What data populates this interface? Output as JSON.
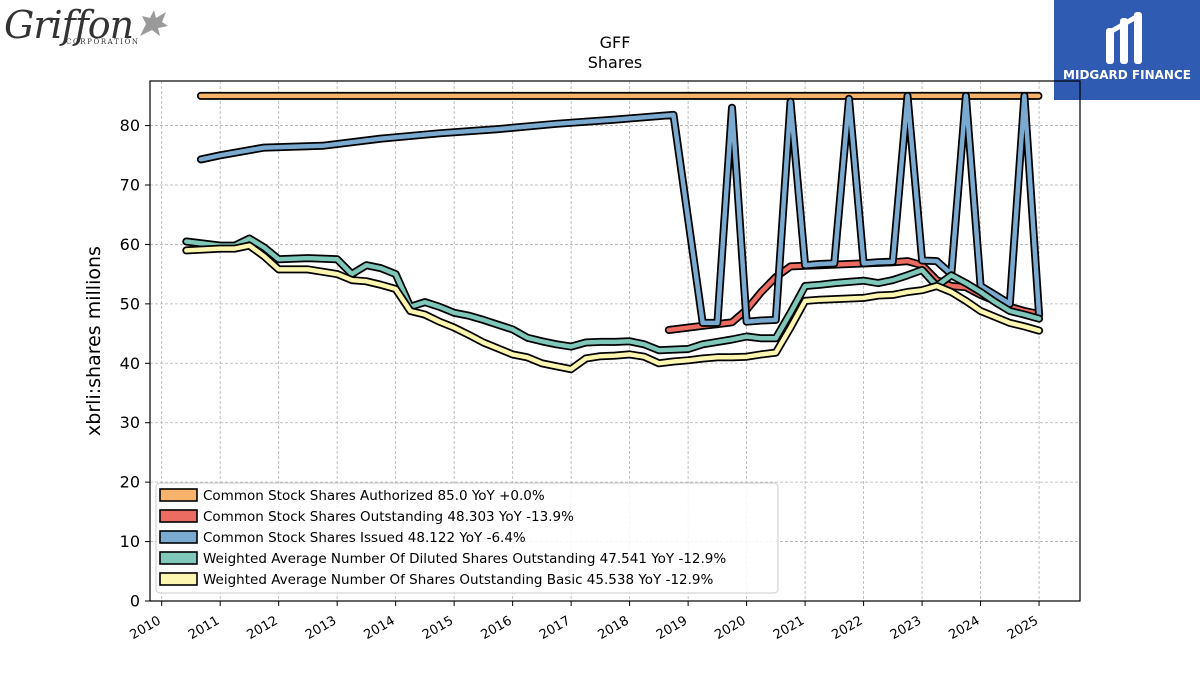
{
  "logos": {
    "left_text": "Griffon",
    "left_sub": "CORPORATION",
    "right_text": "MIDGARD FINANCE",
    "right_bg": "#2f5bb3"
  },
  "chart_data": {
    "type": "line",
    "title": "GFF",
    "subtitle": "Shares",
    "ylabel": "xbrli:shares millions",
    "xlabel": "",
    "xlim": [
      2009.8,
      2025.7
    ],
    "ylim": [
      0,
      87.5
    ],
    "yticks": [
      0,
      10,
      20,
      30,
      40,
      50,
      60,
      70,
      80
    ],
    "xticks": [
      "2010",
      "2011",
      "2012",
      "2013",
      "2014",
      "2015",
      "2016",
      "2017",
      "2018",
      "2019",
      "2020",
      "2021",
      "2022",
      "2023",
      "2024",
      "2025"
    ],
    "grid": true,
    "legend_position": "lower-left",
    "series": [
      {
        "name": "Common Stock Shares Authorized",
        "legend": "Common Stock Shares Authorized  85.0 YoY +0.0%",
        "color": "#f7b36b",
        "x": [
          2010.67,
          2024.99
        ],
        "y": [
          85.0,
          85.0
        ]
      },
      {
        "name": "Common Stock Shares Outstanding",
        "legend": "Common Stock Shares Outstanding  48.303 YoY -13.9%",
        "color": "#ed6c61",
        "x": [
          2018.67,
          2019.0,
          2019.25,
          2019.5,
          2019.75,
          2020.0,
          2020.25,
          2020.5,
          2020.75,
          2021.0,
          2021.25,
          2021.5,
          2021.75,
          2022.0,
          2022.25,
          2022.5,
          2022.75,
          2023.0,
          2023.25,
          2023.5,
          2023.75,
          2024.0,
          2024.25,
          2024.5,
          2024.75,
          2025.0
        ],
        "y": [
          45.6,
          46.0,
          46.3,
          46.6,
          46.9,
          49.0,
          52.0,
          54.5,
          56.3,
          56.4,
          56.5,
          56.6,
          56.7,
          56.8,
          56.9,
          57.0,
          57.2,
          56.5,
          54.0,
          53.0,
          52.8,
          51.5,
          50.5,
          49.5,
          48.8,
          48.3
        ]
      },
      {
        "name": "Common Stock Shares Issued",
        "legend": "Common Stock Shares Issued  48.122 YoY -6.4%",
        "color": "#7aaad0",
        "x": [
          2010.67,
          2011.0,
          2011.75,
          2012.75,
          2013.75,
          2014.75,
          2015.75,
          2016.75,
          2017.75,
          2018.75,
          2019.25,
          2019.5,
          2019.75,
          2020.0,
          2020.25,
          2020.5,
          2020.75,
          2021.0,
          2021.25,
          2021.5,
          2021.75,
          2022.0,
          2022.25,
          2022.5,
          2022.75,
          2023.0,
          2023.25,
          2023.5,
          2023.75,
          2024.0,
          2024.25,
          2024.5,
          2024.75,
          2025.0
        ],
        "y": [
          74.3,
          75.0,
          76.3,
          76.6,
          77.8,
          78.7,
          79.4,
          80.3,
          81.0,
          81.8,
          46.8,
          46.8,
          83.0,
          47.0,
          47.2,
          47.3,
          84.0,
          56.5,
          56.7,
          56.8,
          84.5,
          56.8,
          57.0,
          57.1,
          85.0,
          57.3,
          57.2,
          55.0,
          85.0,
          53.0,
          51.5,
          50.0,
          85.0,
          48.1
        ]
      },
      {
        "name": "Weighted Average Number Of Diluted Shares Outstanding",
        "legend": "Weighted Average Number Of Diluted Shares Outstanding  47.541 YoY -12.9%",
        "color": "#7fc8b9",
        "x": [
          2010.42,
          2011.0,
          2011.25,
          2011.5,
          2011.75,
          2012.0,
          2012.5,
          2013.0,
          2013.25,
          2013.5,
          2013.75,
          2014.0,
          2014.25,
          2014.5,
          2014.75,
          2015.0,
          2015.25,
          2015.5,
          2015.75,
          2016.0,
          2016.25,
          2016.5,
          2016.75,
          2017.0,
          2017.25,
          2017.5,
          2017.75,
          2018.0,
          2018.25,
          2018.5,
          2018.75,
          2019.0,
          2019.25,
          2019.5,
          2019.75,
          2020.0,
          2020.25,
          2020.5,
          2020.75,
          2021.0,
          2021.25,
          2021.5,
          2021.75,
          2022.0,
          2022.25,
          2022.5,
          2022.75,
          2023.0,
          2023.25,
          2023.5,
          2023.75,
          2024.0,
          2024.25,
          2024.5,
          2024.75,
          2025.0
        ],
        "y": [
          60.5,
          59.8,
          59.8,
          61.0,
          59.5,
          57.5,
          57.7,
          57.5,
          55.0,
          56.5,
          56.0,
          55.0,
          49.5,
          50.3,
          49.5,
          48.5,
          48.0,
          47.3,
          46.5,
          45.7,
          44.3,
          43.7,
          43.2,
          42.8,
          43.5,
          43.6,
          43.6,
          43.7,
          43.2,
          42.2,
          42.3,
          42.4,
          43.2,
          43.6,
          44.0,
          44.5,
          44.2,
          44.2,
          48.5,
          53.0,
          53.2,
          53.5,
          53.7,
          53.9,
          53.5,
          54.0,
          54.8,
          55.7,
          53.0,
          54.8,
          53.5,
          52.0,
          50.3,
          48.8,
          48.2,
          47.5
        ]
      },
      {
        "name": "Weighted Average Number Of Shares Outstanding Basic",
        "legend": "Weighted Average Number Of Shares Outstanding Basic  45.538 YoY -12.9%",
        "color": "#fdf6b0",
        "x": [
          2010.42,
          2011.0,
          2011.25,
          2011.5,
          2011.75,
          2012.0,
          2012.5,
          2013.0,
          2013.25,
          2013.5,
          2013.75,
          2014.0,
          2014.25,
          2014.5,
          2014.75,
          2015.0,
          2015.25,
          2015.5,
          2015.75,
          2016.0,
          2016.25,
          2016.5,
          2016.75,
          2017.0,
          2017.25,
          2017.5,
          2017.75,
          2018.0,
          2018.25,
          2018.5,
          2018.75,
          2019.0,
          2019.25,
          2019.5,
          2019.75,
          2020.0,
          2020.25,
          2020.5,
          2020.75,
          2021.0,
          2021.25,
          2021.5,
          2021.75,
          2022.0,
          2022.25,
          2022.5,
          2022.75,
          2023.0,
          2023.25,
          2023.5,
          2023.75,
          2024.0,
          2024.25,
          2024.5,
          2024.75,
          2025.0
        ],
        "y": [
          59.0,
          59.3,
          59.3,
          59.8,
          58.0,
          55.8,
          55.8,
          55.0,
          54.0,
          53.8,
          53.2,
          52.5,
          48.8,
          48.2,
          47.0,
          46.0,
          44.8,
          43.5,
          42.5,
          41.5,
          41.0,
          40.0,
          39.5,
          39.0,
          40.8,
          41.2,
          41.3,
          41.5,
          41.1,
          40.0,
          40.3,
          40.5,
          40.8,
          41.0,
          41.0,
          41.1,
          41.5,
          41.8,
          46.0,
          50.5,
          50.7,
          50.8,
          50.9,
          51.0,
          51.4,
          51.5,
          52.0,
          52.3,
          53.0,
          52.0,
          50.5,
          48.8,
          47.8,
          46.8,
          46.2,
          45.5
        ]
      }
    ]
  }
}
